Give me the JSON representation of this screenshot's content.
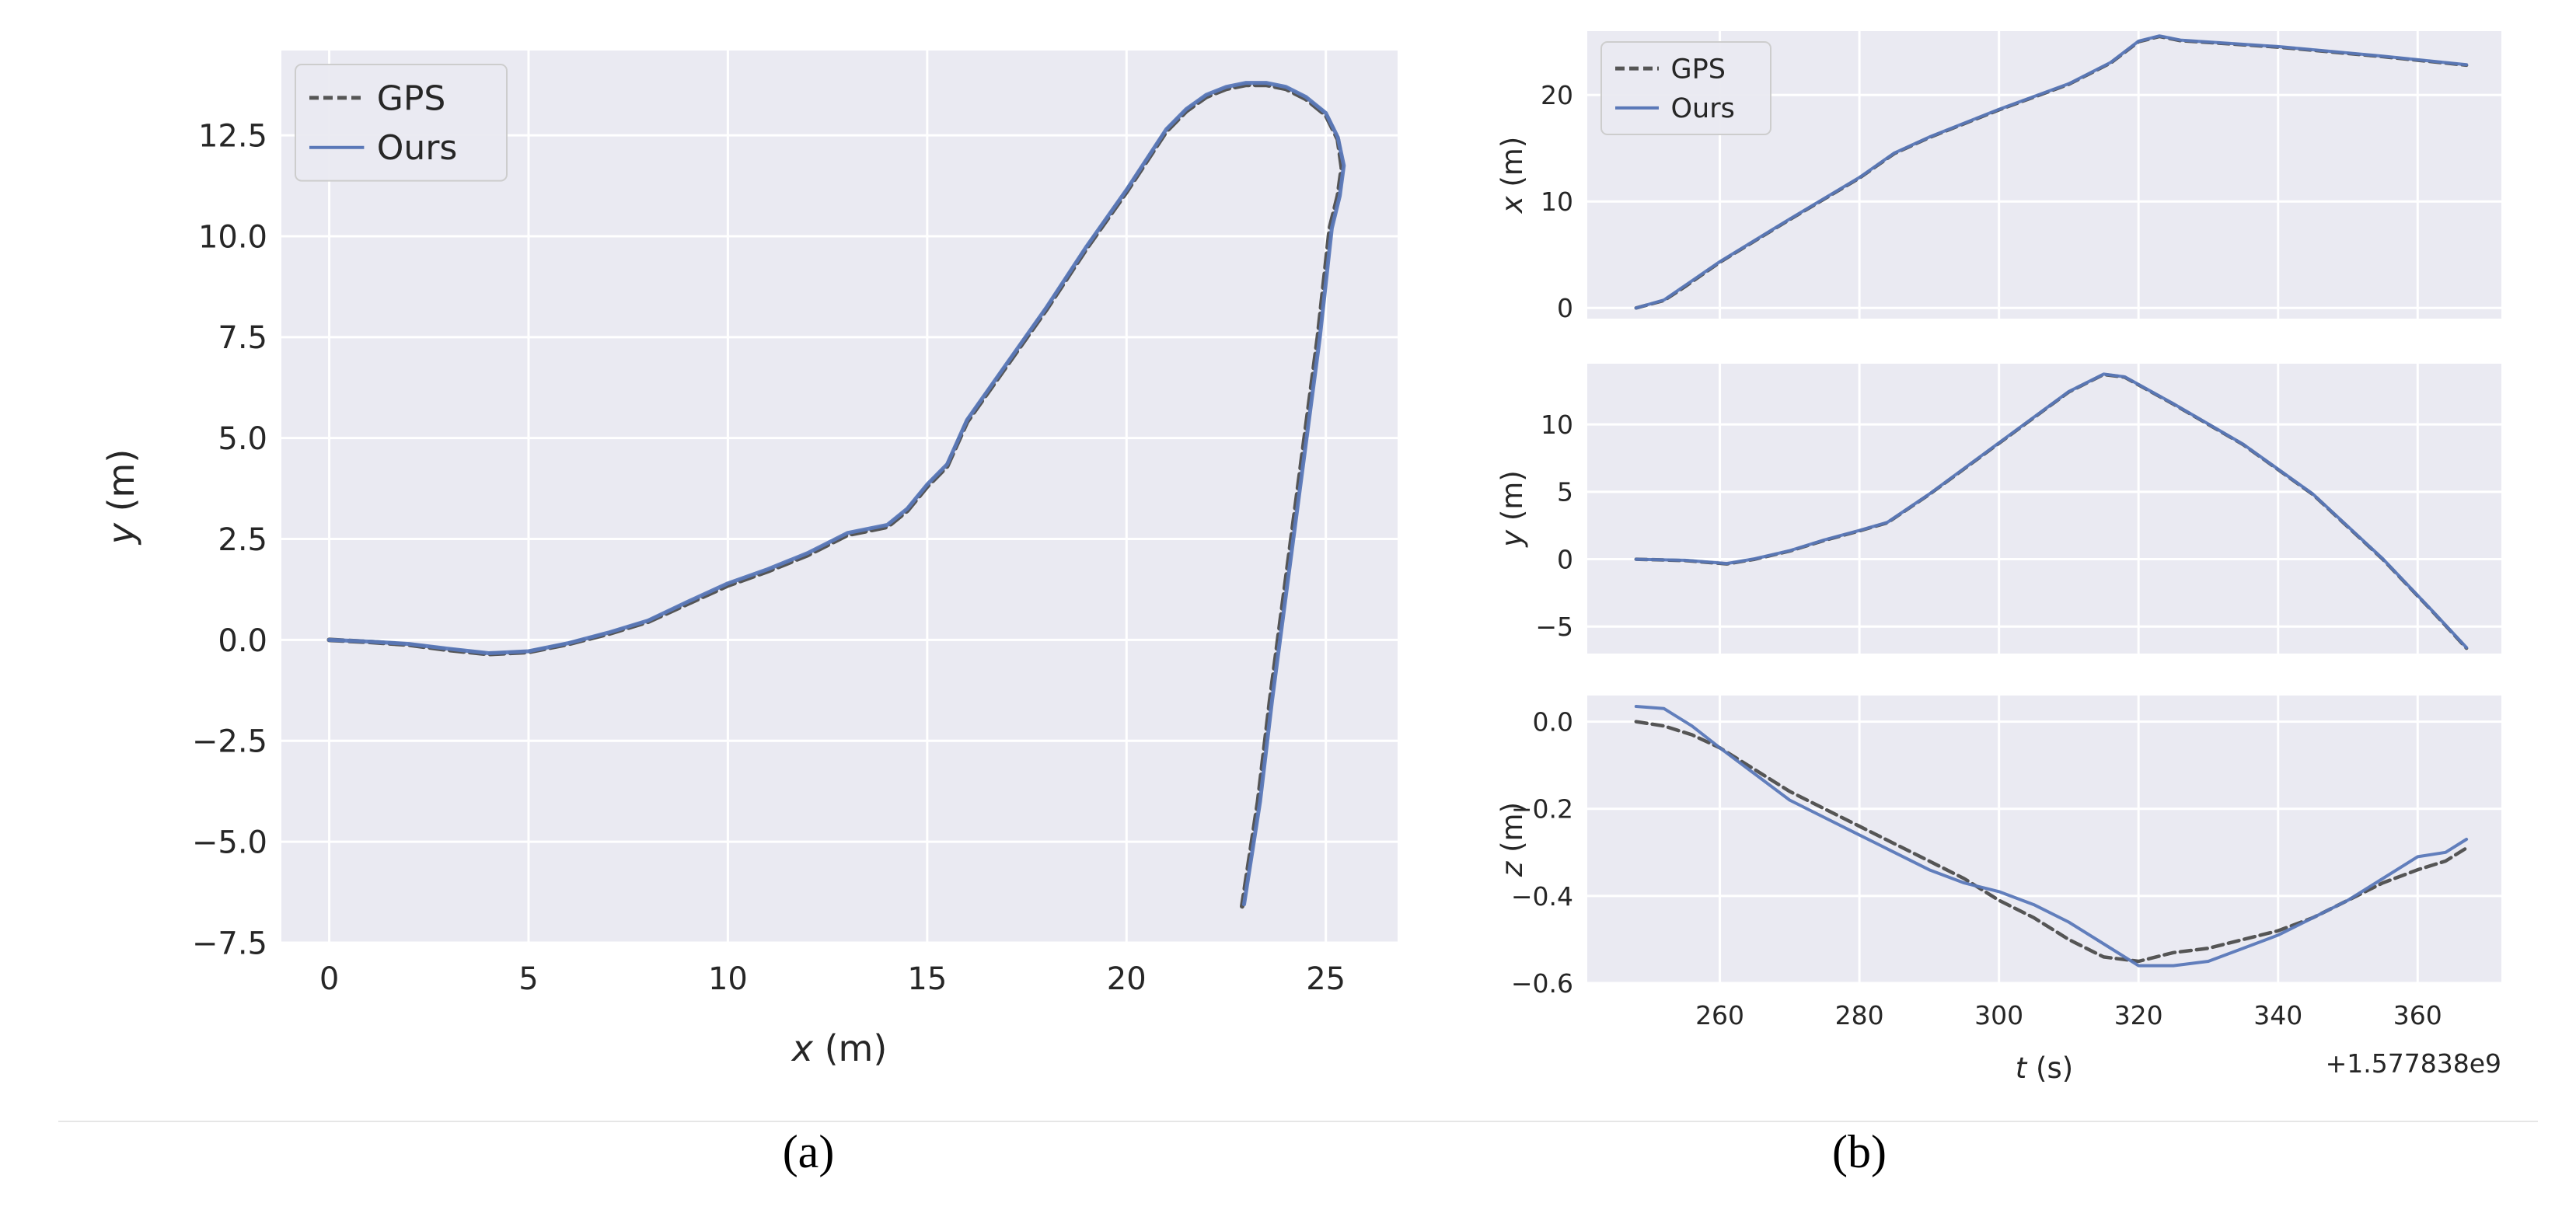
{
  "colors": {
    "background": "#ffffff",
    "plot_face": "#eaeaf2",
    "grid": "#ffffff",
    "gps": "#555555",
    "ours": "#5a78b8",
    "text": "#262626",
    "separator": "#e6e6e6"
  },
  "captions": {
    "a": "(a)",
    "b": "(b)"
  },
  "chart_data": [
    {
      "id": "a",
      "type": "line",
      "xlabel_var": "x",
      "xlabel_unit": " (m)",
      "ylabel_var": "y",
      "ylabel_unit": " (m)",
      "xlim": [
        -1.2,
        26.8
      ],
      "ylim": [
        -7.5,
        14.6
      ],
      "xticks": [
        0,
        5,
        10,
        15,
        20,
        25
      ],
      "xtick_labels": [
        "0",
        "5",
        "10",
        "15",
        "20",
        "25"
      ],
      "yticks": [
        -7.5,
        -5.0,
        -2.5,
        0.0,
        2.5,
        5.0,
        7.5,
        10.0,
        12.5
      ],
      "ytick_labels": [
        "−7.5",
        "−5.0",
        "−2.5",
        "0.0",
        "2.5",
        "5.0",
        "7.5",
        "10.0",
        "12.5"
      ],
      "grid": true,
      "legend": {
        "position": "upper-left",
        "entries": [
          "GPS",
          "Ours"
        ]
      },
      "series": [
        {
          "name": "GPS",
          "style": "dashed",
          "points": [
            [
              0,
              0
            ],
            [
              1,
              -0.05
            ],
            [
              2,
              -0.12
            ],
            [
              3,
              -0.25
            ],
            [
              4,
              -0.35
            ],
            [
              5,
              -0.3
            ],
            [
              6,
              -0.1
            ],
            [
              7,
              0.15
            ],
            [
              8,
              0.45
            ],
            [
              9,
              0.9
            ],
            [
              10,
              1.35
            ],
            [
              11,
              1.7
            ],
            [
              12,
              2.1
            ],
            [
              13,
              2.6
            ],
            [
              14,
              2.8
            ],
            [
              14.5,
              3.2
            ],
            [
              15,
              3.8
            ],
            [
              15.5,
              4.3
            ],
            [
              16,
              5.4
            ],
            [
              17,
              6.8
            ],
            [
              18,
              8.2
            ],
            [
              19,
              9.7
            ],
            [
              20,
              11.1
            ],
            [
              21,
              12.6
            ],
            [
              21.5,
              13.1
            ],
            [
              22,
              13.45
            ],
            [
              22.5,
              13.65
            ],
            [
              23,
              13.75
            ],
            [
              23.5,
              13.75
            ],
            [
              24,
              13.65
            ],
            [
              24.5,
              13.4
            ],
            [
              25,
              13.0
            ],
            [
              25.3,
              12.4
            ],
            [
              25.4,
              11.7
            ],
            [
              25.3,
              11.0
            ],
            [
              25.1,
              10.2
            ],
            [
              24.8,
              7.5
            ],
            [
              24.4,
              4.5
            ],
            [
              24.0,
              1.5
            ],
            [
              23.6,
              -1.5
            ],
            [
              23.3,
              -4.0
            ],
            [
              22.9,
              -6.6
            ]
          ]
        },
        {
          "name": "Ours",
          "style": "solid",
          "points": [
            [
              0,
              0
            ],
            [
              1,
              -0.04
            ],
            [
              2,
              -0.1
            ],
            [
              3,
              -0.22
            ],
            [
              4,
              -0.33
            ],
            [
              5,
              -0.28
            ],
            [
              6,
              -0.08
            ],
            [
              7,
              0.18
            ],
            [
              8,
              0.48
            ],
            [
              9,
              0.95
            ],
            [
              10,
              1.4
            ],
            [
              11,
              1.75
            ],
            [
              12,
              2.15
            ],
            [
              13,
              2.65
            ],
            [
              14,
              2.85
            ],
            [
              14.5,
              3.25
            ],
            [
              15,
              3.85
            ],
            [
              15.5,
              4.35
            ],
            [
              16,
              5.45
            ],
            [
              17,
              6.85
            ],
            [
              18,
              8.25
            ],
            [
              19,
              9.75
            ],
            [
              20,
              11.15
            ],
            [
              21,
              12.65
            ],
            [
              21.5,
              13.15
            ],
            [
              22,
              13.5
            ],
            [
              22.5,
              13.7
            ],
            [
              23,
              13.8
            ],
            [
              23.5,
              13.8
            ],
            [
              24,
              13.7
            ],
            [
              24.5,
              13.45
            ],
            [
              25,
              13.05
            ],
            [
              25.3,
              12.45
            ],
            [
              25.45,
              11.75
            ],
            [
              25.35,
              11.0
            ],
            [
              25.15,
              10.2
            ],
            [
              24.85,
              7.5
            ],
            [
              24.45,
              4.5
            ],
            [
              24.05,
              1.5
            ],
            [
              23.65,
              -1.5
            ],
            [
              23.35,
              -4.0
            ],
            [
              22.95,
              -6.55
            ]
          ]
        }
      ]
    },
    {
      "id": "b-x",
      "type": "line",
      "ylabel_var": "x",
      "ylabel_unit": " (m)",
      "xlim": [
        241,
        372
      ],
      "ylim": [
        -1,
        26
      ],
      "yticks": [
        0,
        10,
        20
      ],
      "ytick_labels": [
        "0",
        "10",
        "20"
      ],
      "grid": true,
      "legend": {
        "position": "upper-left",
        "entries": [
          "GPS",
          "Ours"
        ]
      },
      "series": [
        {
          "name": "GPS",
          "style": "dashed",
          "points": [
            [
              248,
              0
            ],
            [
              252,
              0.7
            ],
            [
              255,
              2
            ],
            [
              260,
              4.3
            ],
            [
              270,
              8.3
            ],
            [
              280,
              12.2
            ],
            [
              285,
              14.5
            ],
            [
              290,
              16
            ],
            [
              300,
              18.6
            ],
            [
              310,
              21
            ],
            [
              316,
              23
            ],
            [
              320,
              25
            ],
            [
              323,
              25.5
            ],
            [
              326,
              25.1
            ],
            [
              340,
              24.5
            ],
            [
              355,
              23.6
            ],
            [
              367,
              22.8
            ]
          ]
        },
        {
          "name": "Ours",
          "style": "solid",
          "points": [
            [
              248,
              0
            ],
            [
              252,
              0.75
            ],
            [
              255,
              2.1
            ],
            [
              260,
              4.35
            ],
            [
              270,
              8.35
            ],
            [
              280,
              12.25
            ],
            [
              285,
              14.55
            ],
            [
              290,
              16.05
            ],
            [
              300,
              18.65
            ],
            [
              310,
              21.05
            ],
            [
              316,
              23.05
            ],
            [
              320,
              25.05
            ],
            [
              323,
              25.55
            ],
            [
              326,
              25.15
            ],
            [
              340,
              24.55
            ],
            [
              355,
              23.65
            ],
            [
              367,
              22.85
            ]
          ]
        }
      ]
    },
    {
      "id": "b-y",
      "type": "line",
      "ylabel_var": "y",
      "ylabel_unit": " (m)",
      "xlim": [
        241,
        372
      ],
      "ylim": [
        -7,
        14.5
      ],
      "yticks": [
        -5,
        0,
        5,
        10
      ],
      "ytick_labels": [
        "−5",
        "0",
        "5",
        "10"
      ],
      "grid": true,
      "series": [
        {
          "name": "GPS",
          "style": "dashed",
          "points": [
            [
              248,
              0
            ],
            [
              255,
              -0.1
            ],
            [
              261,
              -0.35
            ],
            [
              265,
              0
            ],
            [
              270,
              0.6
            ],
            [
              275,
              1.4
            ],
            [
              280,
              2.1
            ],
            [
              284,
              2.7
            ],
            [
              290,
              4.8
            ],
            [
              300,
              8.6
            ],
            [
              310,
              12.4
            ],
            [
              315,
              13.7
            ],
            [
              318,
              13.5
            ],
            [
              325,
              11.5
            ],
            [
              335,
              8.5
            ],
            [
              345,
              4.8
            ],
            [
              355,
              0
            ],
            [
              362,
              -3.8
            ],
            [
              367,
              -6.6
            ]
          ]
        },
        {
          "name": "Ours",
          "style": "solid",
          "points": [
            [
              248,
              0
            ],
            [
              255,
              -0.08
            ],
            [
              261,
              -0.32
            ],
            [
              265,
              0.03
            ],
            [
              270,
              0.63
            ],
            [
              275,
              1.43
            ],
            [
              280,
              2.13
            ],
            [
              284,
              2.73
            ],
            [
              290,
              4.83
            ],
            [
              300,
              8.63
            ],
            [
              310,
              12.43
            ],
            [
              315,
              13.73
            ],
            [
              318,
              13.53
            ],
            [
              325,
              11.53
            ],
            [
              335,
              8.53
            ],
            [
              345,
              4.83
            ],
            [
              355,
              0.03
            ],
            [
              362,
              -3.77
            ],
            [
              367,
              -6.55
            ]
          ]
        }
      ]
    },
    {
      "id": "b-z",
      "type": "line",
      "ylabel_var": "z",
      "ylabel_unit": " (m)",
      "xlabel_var": "t",
      "xlabel_unit": " (s)",
      "x_offset_label": "+1.577838e9",
      "xlim": [
        241,
        372
      ],
      "ylim": [
        -0.6,
        0.06
      ],
      "xticks": [
        260,
        280,
        300,
        320,
        340,
        360
      ],
      "xtick_labels": [
        "260",
        "280",
        "300",
        "320",
        "340",
        "360"
      ],
      "yticks": [
        -0.6,
        -0.4,
        -0.2,
        0.0
      ],
      "ytick_labels": [
        "−0.6",
        "−0.4",
        "−0.2",
        "0.0"
      ],
      "grid": true,
      "series": [
        {
          "name": "GPS",
          "style": "dashed",
          "points": [
            [
              248,
              0
            ],
            [
              252,
              -0.01
            ],
            [
              256,
              -0.03
            ],
            [
              260,
              -0.06
            ],
            [
              265,
              -0.11
            ],
            [
              270,
              -0.16
            ],
            [
              275,
              -0.2
            ],
            [
              280,
              -0.24
            ],
            [
              285,
              -0.28
            ],
            [
              290,
              -0.32
            ],
            [
              295,
              -0.36
            ],
            [
              300,
              -0.41
            ],
            [
              305,
              -0.45
            ],
            [
              310,
              -0.5
            ],
            [
              315,
              -0.54
            ],
            [
              320,
              -0.55
            ],
            [
              325,
              -0.53
            ],
            [
              330,
              -0.52
            ],
            [
              335,
              -0.5
            ],
            [
              340,
              -0.48
            ],
            [
              345,
              -0.45
            ],
            [
              350,
              -0.41
            ],
            [
              355,
              -0.37
            ],
            [
              360,
              -0.34
            ],
            [
              364,
              -0.32
            ],
            [
              367,
              -0.29
            ]
          ]
        },
        {
          "name": "Ours",
          "style": "solid",
          "points": [
            [
              248,
              0.035
            ],
            [
              252,
              0.03
            ],
            [
              256,
              -0.01
            ],
            [
              260,
              -0.06
            ],
            [
              265,
              -0.12
            ],
            [
              270,
              -0.18
            ],
            [
              275,
              -0.22
            ],
            [
              280,
              -0.26
            ],
            [
              285,
              -0.3
            ],
            [
              290,
              -0.34
            ],
            [
              295,
              -0.37
            ],
            [
              300,
              -0.39
            ],
            [
              305,
              -0.42
            ],
            [
              310,
              -0.46
            ],
            [
              315,
              -0.51
            ],
            [
              320,
              -0.56
            ],
            [
              325,
              -0.56
            ],
            [
              330,
              -0.55
            ],
            [
              335,
              -0.52
            ],
            [
              340,
              -0.49
            ],
            [
              345,
              -0.45
            ],
            [
              350,
              -0.41
            ],
            [
              355,
              -0.36
            ],
            [
              360,
              -0.31
            ],
            [
              364,
              -0.3
            ],
            [
              367,
              -0.27
            ]
          ]
        }
      ]
    }
  ]
}
